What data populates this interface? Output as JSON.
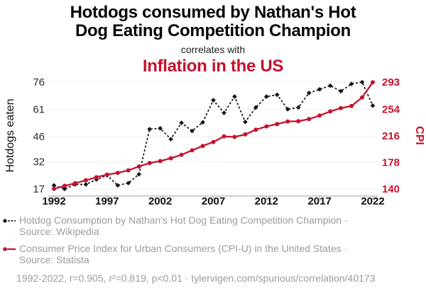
{
  "header": {
    "title_line1": "Hotdogs consumed by Nathan's Hot",
    "title_line2": "Dog Eating Competition Champion",
    "connector": "correlates with",
    "title2": "Inflation in the US"
  },
  "colors": {
    "accent": "#c4122f",
    "series_black": "#151515",
    "muted_text": "#9b9b9b",
    "gridline": "#efefef"
  },
  "chart_data": {
    "type": "line",
    "x": [
      1992,
      1993,
      1994,
      1995,
      1996,
      1997,
      1998,
      1999,
      2000,
      2001,
      2002,
      2003,
      2004,
      2005,
      2006,
      2007,
      2008,
      2009,
      2010,
      2011,
      2012,
      2013,
      2014,
      2015,
      2016,
      2017,
      2018,
      2019,
      2020,
      2021,
      2022
    ],
    "series": [
      {
        "name": "Hotdog Consumption by Nathan's Hot Dog Eating Competition Champion",
        "source": "Wikipedia",
        "axis": "left",
        "style": "dashed black line with diamond markers",
        "values": [
          19,
          17,
          19.5,
          19.5,
          22.25,
          24.5,
          19,
          20.25,
          25.125,
          50,
          50.5,
          44.5,
          53.5,
          49,
          53.75,
          66,
          59,
          68,
          54,
          62,
          68,
          69,
          61,
          62,
          70,
          72,
          74,
          71,
          75,
          76,
          63
        ]
      },
      {
        "name": "Consumer Price Index for Urban Consumers (CPI-U) in the United States",
        "source": "Statista",
        "axis": "right",
        "style": "solid red line with circle markers",
        "values": [
          140.3,
          144.5,
          148.2,
          152.4,
          156.9,
          160.5,
          163.0,
          166.6,
          172.2,
          177.1,
          179.9,
          184.0,
          188.9,
          195.3,
          201.6,
          207.3,
          215.3,
          214.5,
          218.1,
          224.9,
          229.6,
          233.0,
          236.7,
          237.0,
          240.0,
          245.1,
          251.1,
          255.7,
          258.8,
          271.0,
          292.7
        ]
      }
    ],
    "left_axis": {
      "label": "Hotdogs eaten",
      "ticks": [
        17,
        32,
        46,
        61,
        76
      ],
      "range": [
        17,
        76
      ]
    },
    "right_axis": {
      "label": "CPI",
      "ticks": [
        140,
        178,
        216,
        254,
        293
      ],
      "range": [
        140,
        293
      ]
    },
    "x_axis": {
      "ticks": [
        1992,
        1997,
        2002,
        2007,
        2012,
        2017,
        2022
      ],
      "range": [
        1992,
        2022
      ]
    },
    "grid": "horizontal light gray",
    "legend_position": "below chart, left aligned"
  },
  "legend": {
    "items": [
      {
        "line1": "Hotdog Consumption by Nathan's Hot Dog Eating Competition Champion ·",
        "line2": "Source: Wikipedia"
      },
      {
        "line1": "Consumer Price Index for Urban Consumers (CPI-U) in the United States ·",
        "line2": "Source: Statista"
      }
    ]
  },
  "footer": {
    "text": "1992-2022, r=0.905, r²=0.819, p<0.01 · tylervigen.com/spurious/correlation/40173"
  }
}
